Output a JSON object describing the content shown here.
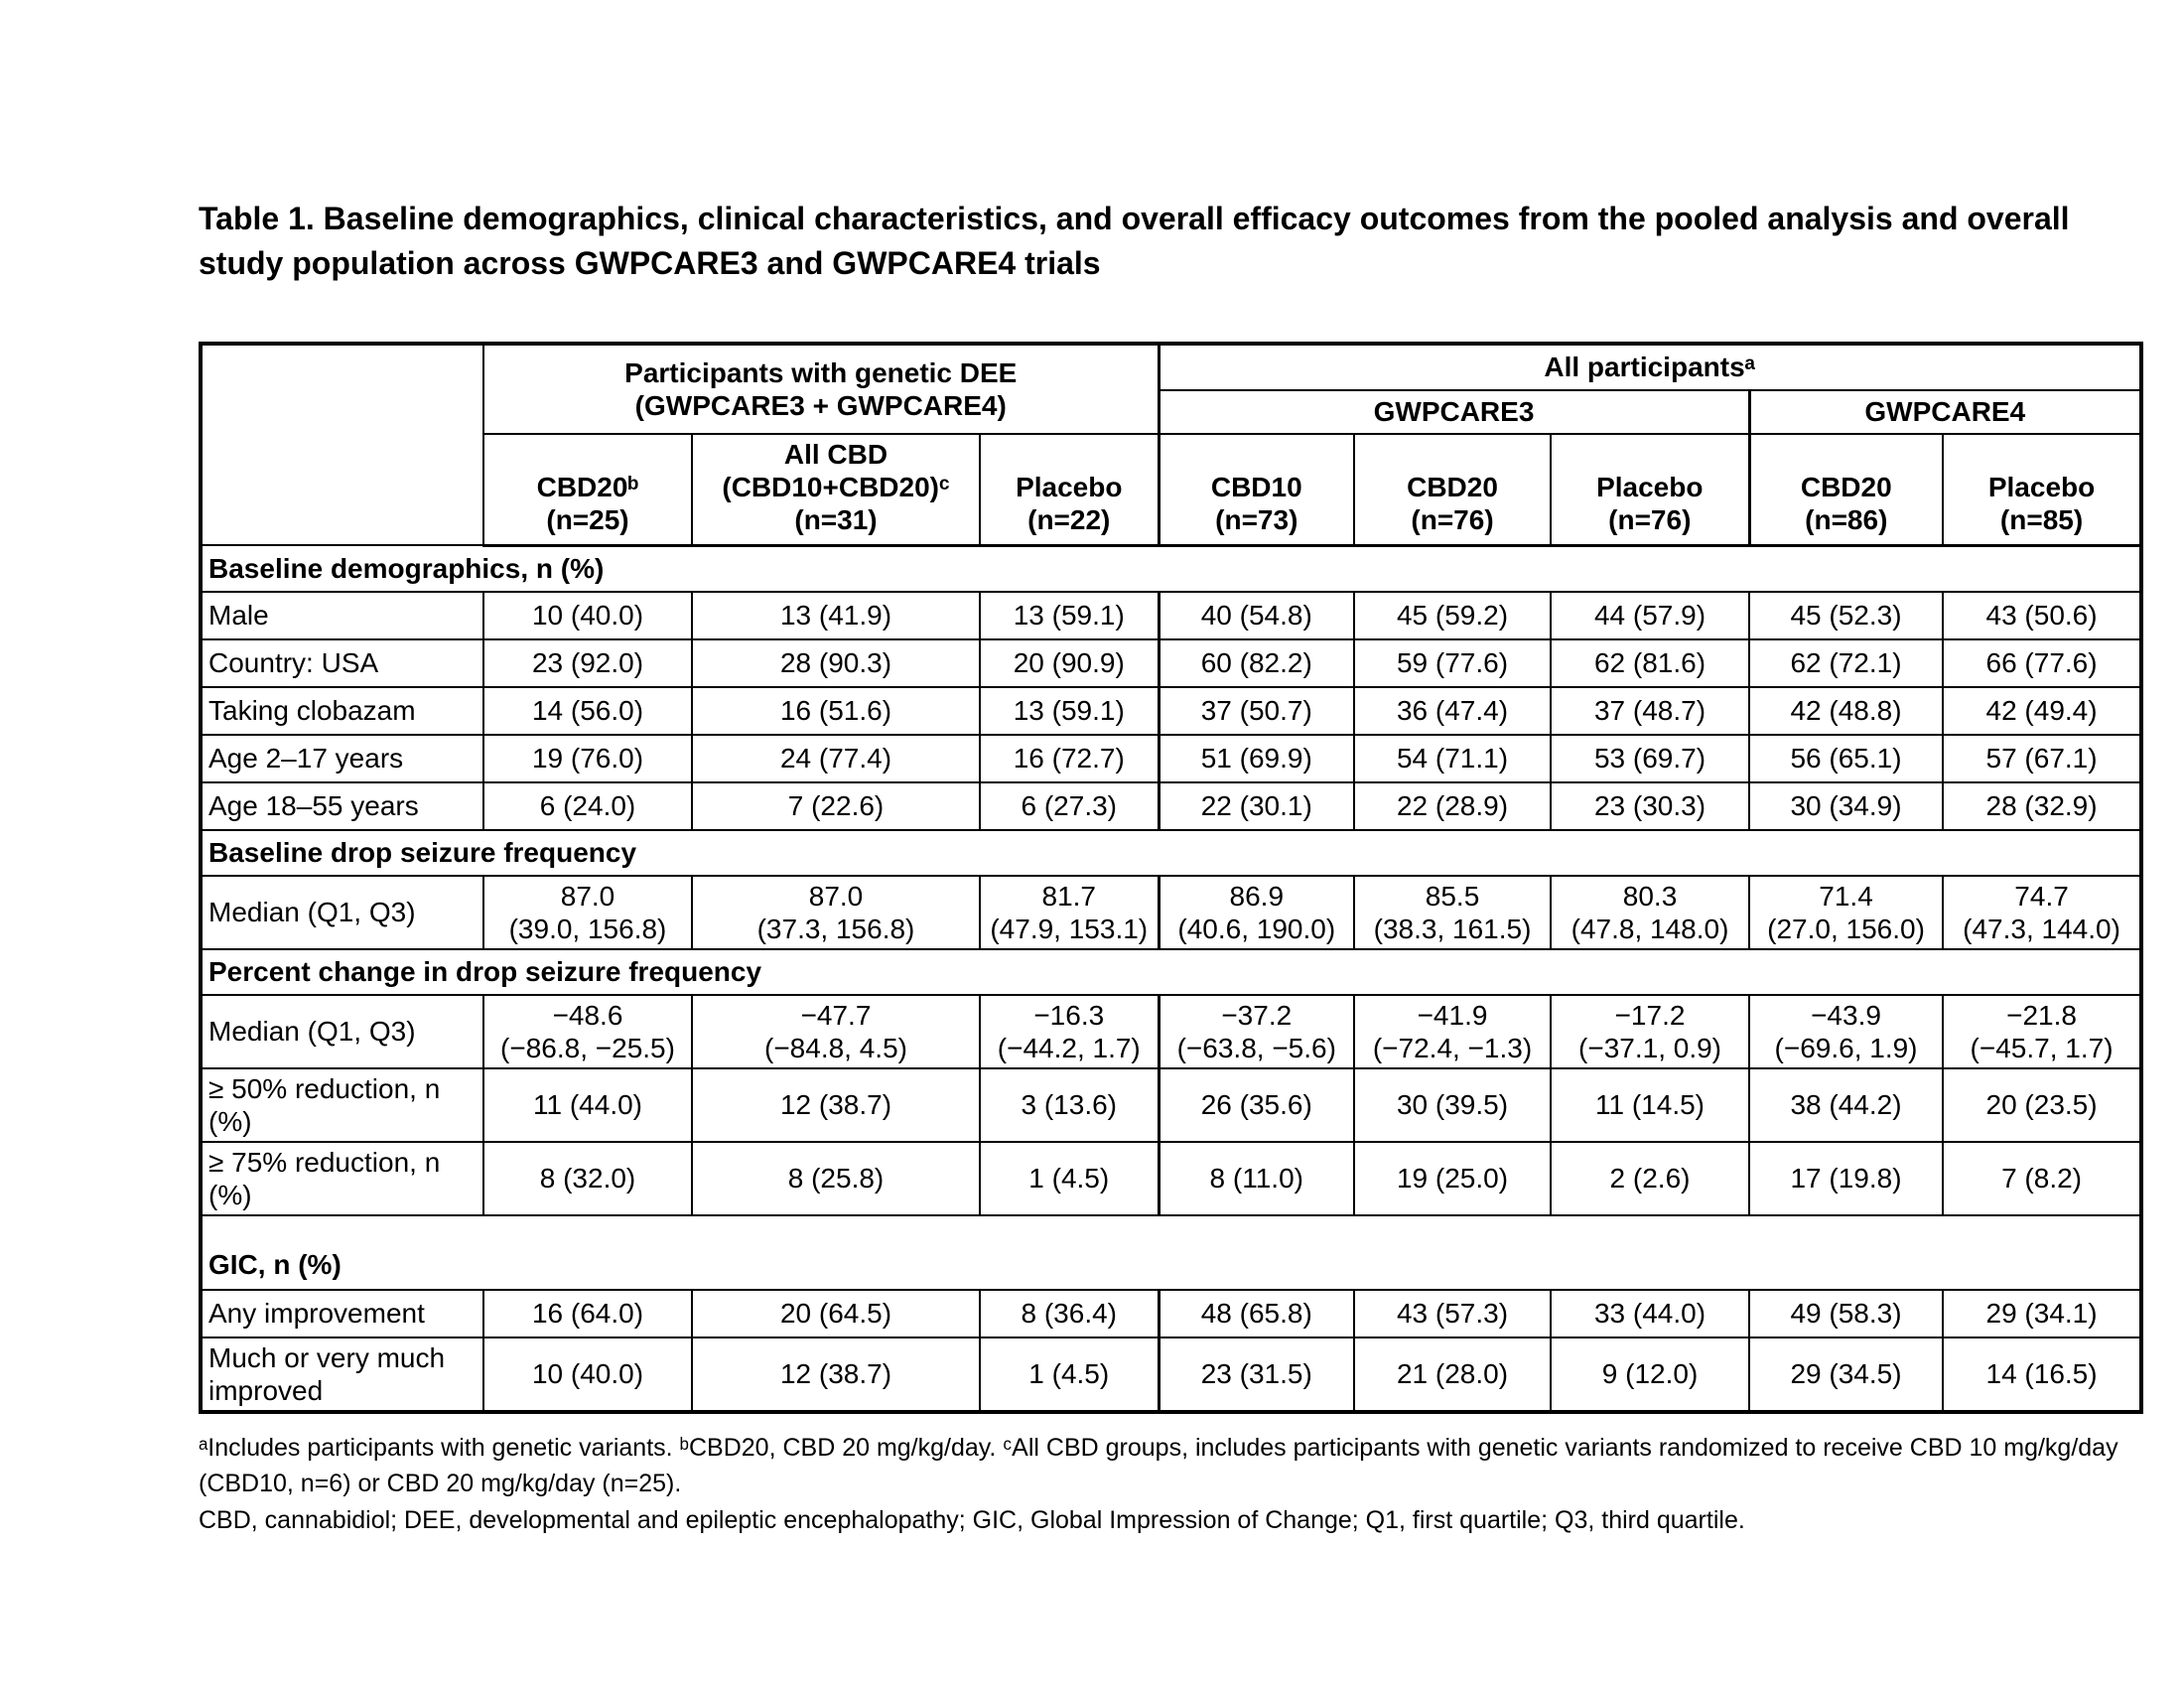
{
  "title": "Table 1. Baseline demographics, clinical characteristics, and overall efficacy outcomes from the pooled analysis and overall study population across GWPCARE3 and GWPCARE4 trials",
  "table": {
    "header": {
      "corner": "",
      "genetic_dee_group": [
        "Participants with genetic DEE",
        "(GWPCARE3 + GWPCARE4)"
      ],
      "all_participants_group": "All participantsᵃ",
      "gwpcare3": "GWPCARE3",
      "gwpcare4": "GWPCARE4",
      "columns": [
        [
          "CBD20ᵇ",
          "(n=25)"
        ],
        [
          "All CBD",
          "(CBD10+CBD20)ᶜ",
          "(n=31)"
        ],
        [
          "Placebo",
          "(n=22)"
        ],
        [
          "CBD10",
          "(n=73)"
        ],
        [
          "CBD20",
          "(n=76)"
        ],
        [
          "Placebo",
          "(n=76)"
        ],
        [
          "CBD20",
          "(n=86)"
        ],
        [
          "Placebo",
          "(n=85)"
        ]
      ]
    },
    "sections": [
      {
        "title": "Baseline demographics, n (%)",
        "rows": [
          {
            "label": "Male",
            "values": [
              "10 (40.0)",
              "13 (41.9)",
              "13 (59.1)",
              "40 (54.8)",
              "45 (59.2)",
              "44 (57.9)",
              "45 (52.3)",
              "43 (50.6)"
            ]
          },
          {
            "label": "Country: USA",
            "values": [
              "23 (92.0)",
              "28 (90.3)",
              "20 (90.9)",
              "60 (82.2)",
              "59 (77.6)",
              "62 (81.6)",
              "62 (72.1)",
              "66 (77.6)"
            ]
          },
          {
            "label": "Taking clobazam",
            "values": [
              "14 (56.0)",
              "16 (51.6)",
              "13 (59.1)",
              "37 (50.7)",
              "36 (47.4)",
              "37 (48.7)",
              "42 (48.8)",
              "42 (49.4)"
            ]
          },
          {
            "label": "Age 2–17 years",
            "values": [
              "19 (76.0)",
              "24 (77.4)",
              "16 (72.7)",
              "51 (69.9)",
              "54 (71.1)",
              "53 (69.7)",
              "56 (65.1)",
              "57 (67.1)"
            ]
          },
          {
            "label": "Age 18–55 years",
            "values": [
              "6 (24.0)",
              "7 (22.6)",
              "6 (27.3)",
              "22 (30.1)",
              "22 (28.9)",
              "23 (30.3)",
              "30 (34.9)",
              "28 (32.9)"
            ]
          }
        ]
      },
      {
        "title": "Baseline drop seizure frequency",
        "rows": [
          {
            "label": "Median (Q1, Q3)",
            "values": [
              [
                "87.0",
                "(39.0, 156.8)"
              ],
              [
                "87.0",
                "(37.3, 156.8)"
              ],
              [
                "81.7",
                "(47.9, 153.1)"
              ],
              [
                "86.9",
                "(40.6, 190.0)"
              ],
              [
                "85.5",
                "(38.3, 161.5)"
              ],
              [
                "80.3",
                "(47.8, 148.0)"
              ],
              [
                "71.4",
                "(27.0, 156.0)"
              ],
              [
                "74.7",
                "(47.3, 144.0)"
              ]
            ]
          }
        ]
      },
      {
        "title": "Percent change in drop seizure frequency",
        "rows": [
          {
            "label": "Median (Q1, Q3)",
            "values": [
              [
                "−48.6",
                "(−86.8, −25.5)"
              ],
              [
                "−47.7",
                "(−84.8, 4.5)"
              ],
              [
                "−16.3",
                "(−44.2, 1.7)"
              ],
              [
                "−37.2",
                "(−63.8, −5.6)"
              ],
              [
                "−41.9",
                "(−72.4, −1.3)"
              ],
              [
                "−17.2",
                "(−37.1, 0.9)"
              ],
              [
                "−43.9",
                "(−69.6, 1.9)"
              ],
              [
                "−21.8",
                "(−45.7, 1.7)"
              ]
            ]
          },
          {
            "label": "≥ 50% reduction, n (%)",
            "values": [
              "11 (44.0)",
              "12 (38.7)",
              "3 (13.6)",
              "26 (35.6)",
              "30 (39.5)",
              "11 (14.5)",
              "38 (44.2)",
              "20 (23.5)"
            ]
          },
          {
            "label": "≥ 75% reduction, n (%)",
            "values": [
              "8 (32.0)",
              "8 (25.8)",
              "1 (4.5)",
              "8 (11.0)",
              "19 (25.0)",
              "2 (2.6)",
              "17 (19.8)",
              "7 (8.2)"
            ]
          }
        ]
      },
      {
        "title": "GIC, n (%)",
        "rows": [
          {
            "label": "Any improvement",
            "values": [
              "16 (64.0)",
              "20 (64.5)",
              "8 (36.4)",
              "48 (65.8)",
              "43 (57.3)",
              "33 (44.0)",
              "49 (58.3)",
              "29 (34.1)"
            ]
          },
          {
            "label": "Much or very much improved",
            "values": [
              "10 (40.0)",
              "12 (38.7)",
              "1 (4.5)",
              "23 (31.5)",
              "21 (28.0)",
              "9 (12.0)",
              "29 (34.5)",
              "14 (16.5)"
            ]
          }
        ]
      }
    ]
  },
  "footnotes": [
    "ᵃIncludes participants with genetic variants. ᵇCBD20, CBD 20 mg/kg/day. ᶜAll CBD groups, includes participants with genetic variants randomized to receive CBD 10 mg/kg/day (CBD10, n=6) or CBD 20 mg/kg/day (n=25).",
    "CBD, cannabidiol; DEE, developmental and epileptic encephalopathy; GIC, Global Impression of Change; Q1, first quartile; Q3, third quartile."
  ]
}
